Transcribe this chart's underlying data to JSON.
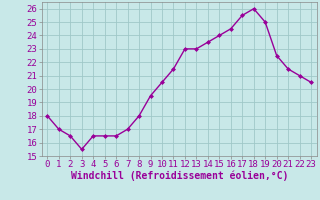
{
  "x": [
    0,
    1,
    2,
    3,
    4,
    5,
    6,
    7,
    8,
    9,
    10,
    11,
    12,
    13,
    14,
    15,
    16,
    17,
    18,
    19,
    20,
    21,
    22,
    23
  ],
  "y": [
    18,
    17,
    16.5,
    15.5,
    16.5,
    16.5,
    16.5,
    17,
    18,
    19.5,
    20.5,
    21.5,
    23,
    23,
    23.5,
    24,
    24.5,
    25.5,
    26,
    25,
    22.5,
    21.5,
    21,
    20.5
  ],
  "line_color": "#990099",
  "marker": "D",
  "marker_size": 2.0,
  "bg_color": "#c8e8e8",
  "grid_color": "#a0c8c8",
  "xlabel": "Windchill (Refroidissement éolien,°C)",
  "xlabel_fontsize": 7,
  "ylim": [
    15,
    26.5
  ],
  "xlim": [
    -0.5,
    23.5
  ],
  "yticks": [
    15,
    16,
    17,
    18,
    19,
    20,
    21,
    22,
    23,
    24,
    25,
    26
  ],
  "xticks": [
    0,
    1,
    2,
    3,
    4,
    5,
    6,
    7,
    8,
    9,
    10,
    11,
    12,
    13,
    14,
    15,
    16,
    17,
    18,
    19,
    20,
    21,
    22,
    23
  ],
  "tick_fontsize": 6.5,
  "line_width": 1.0
}
